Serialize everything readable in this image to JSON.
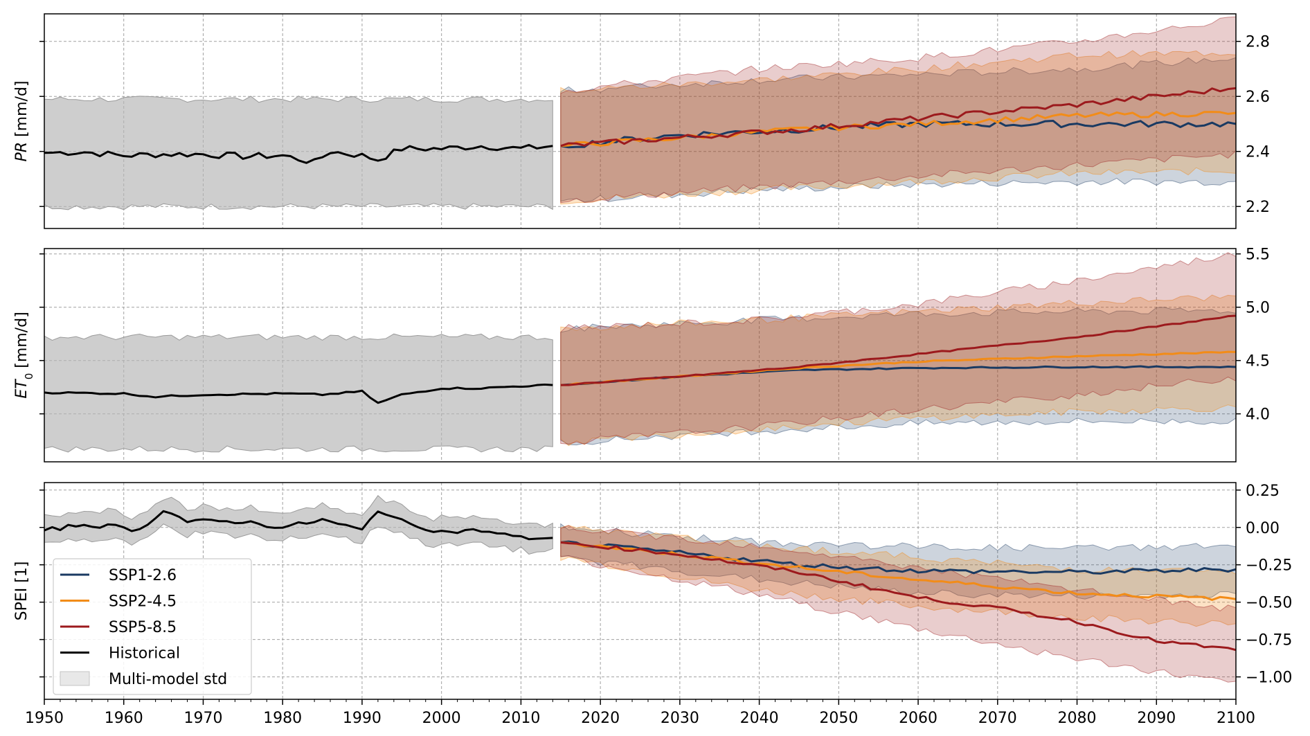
{
  "chart_data": [
    {
      "type": "line",
      "ylabel_main": "PR",
      "ylabel_unit": " [mm/d]",
      "ylabel_italic": true,
      "ylim": [
        2.12,
        2.9
      ],
      "yticks": [
        2.2,
        2.4,
        2.6,
        2.8
      ],
      "ytick_labels": [
        "2.2",
        "2.4",
        "2.6",
        "2.8"
      ],
      "grid": true,
      "historical": {
        "x_range": [
          1950,
          2014
        ],
        "anchors": [
          [
            1950,
            2.395
          ],
          [
            1955,
            2.398
          ],
          [
            1960,
            2.385
          ],
          [
            1965,
            2.39
          ],
          [
            1970,
            2.39
          ],
          [
            1975,
            2.382
          ],
          [
            1980,
            2.385
          ],
          [
            1984,
            2.36
          ],
          [
            1986,
            2.4
          ],
          [
            1990,
            2.385
          ],
          [
            1992,
            2.37
          ],
          [
            1995,
            2.41
          ],
          [
            2000,
            2.41
          ],
          [
            2005,
            2.42
          ],
          [
            2010,
            2.41
          ],
          [
            2014,
            2.42
          ]
        ],
        "noise": 0.012,
        "std_upper": 2.59,
        "std_lower": 2.2
      },
      "projections": [
        {
          "name": "SSP1-2.6",
          "anchors": [
            [
              2015,
              2.42
            ],
            [
              2030,
              2.46
            ],
            [
              2045,
              2.48
            ],
            [
              2060,
              2.5
            ],
            [
              2080,
              2.5
            ],
            [
              2100,
              2.5
            ]
          ],
          "noise": 0.012,
          "band_upper": [
            [
              2015,
              2.62
            ],
            [
              2040,
              2.66
            ],
            [
              2060,
              2.68
            ],
            [
              2080,
              2.7
            ],
            [
              2100,
              2.74
            ]
          ],
          "band_lower": [
            [
              2015,
              2.22
            ],
            [
              2040,
              2.26
            ],
            [
              2060,
              2.28
            ],
            [
              2080,
              2.29
            ],
            [
              2100,
              2.29
            ]
          ]
        },
        {
          "name": "SSP2-4.5",
          "anchors": [
            [
              2015,
              2.42
            ],
            [
              2030,
              2.45
            ],
            [
              2045,
              2.48
            ],
            [
              2060,
              2.5
            ],
            [
              2080,
              2.53
            ],
            [
              2100,
              2.54
            ]
          ],
          "noise": 0.01,
          "band_upper": [
            [
              2015,
              2.62
            ],
            [
              2040,
              2.66
            ],
            [
              2060,
              2.7
            ],
            [
              2080,
              2.75
            ],
            [
              2100,
              2.76
            ]
          ],
          "band_lower": [
            [
              2015,
              2.22
            ],
            [
              2040,
              2.26
            ],
            [
              2060,
              2.29
            ],
            [
              2080,
              2.32
            ],
            [
              2100,
              2.33
            ]
          ]
        },
        {
          "name": "SSP5-8.5",
          "anchors": [
            [
              2015,
              2.42
            ],
            [
              2030,
              2.45
            ],
            [
              2045,
              2.48
            ],
            [
              2060,
              2.52
            ],
            [
              2080,
              2.57
            ],
            [
              2090,
              2.6
            ],
            [
              2100,
              2.63
            ]
          ],
          "noise": 0.01,
          "band_upper": [
            [
              2015,
              2.62
            ],
            [
              2040,
              2.7
            ],
            [
              2060,
              2.74
            ],
            [
              2080,
              2.8
            ],
            [
              2100,
              2.88
            ]
          ],
          "band_lower": [
            [
              2015,
              2.22
            ],
            [
              2040,
              2.27
            ],
            [
              2060,
              2.31
            ],
            [
              2080,
              2.35
            ],
            [
              2100,
              2.39
            ]
          ]
        }
      ]
    },
    {
      "type": "line",
      "ylabel_main": "ET",
      "ylabel_sub": "0",
      "ylabel_unit": " [mm/d]",
      "ylabel_italic": true,
      "ylim": [
        3.55,
        5.55
      ],
      "yticks": [
        4.0,
        4.5,
        5.0,
        5.5
      ],
      "ytick_labels": [
        "4.0",
        "4.5",
        "5.0",
        "5.5"
      ],
      "grid": true,
      "historical": {
        "x_range": [
          1950,
          2014
        ],
        "anchors": [
          [
            1950,
            4.2
          ],
          [
            1960,
            4.19
          ],
          [
            1964,
            4.16
          ],
          [
            1970,
            4.18
          ],
          [
            1980,
            4.19
          ],
          [
            1985,
            4.18
          ],
          [
            1990,
            4.21
          ],
          [
            1992,
            4.1
          ],
          [
            1995,
            4.18
          ],
          [
            2000,
            4.24
          ],
          [
            2005,
            4.24
          ],
          [
            2010,
            4.26
          ],
          [
            2014,
            4.27
          ]
        ],
        "noise": 0.008,
        "std_upper": 4.72,
        "std_lower": 3.67
      },
      "projections": [
        {
          "name": "SSP1-2.6",
          "anchors": [
            [
              2015,
              4.27
            ],
            [
              2030,
              4.35
            ],
            [
              2045,
              4.41
            ],
            [
              2060,
              4.43
            ],
            [
              2080,
              4.44
            ],
            [
              2100,
              4.44
            ]
          ],
          "noise": 0.006,
          "band_upper": [
            [
              2015,
              4.8
            ],
            [
              2040,
              4.88
            ],
            [
              2060,
              4.94
            ],
            [
              2080,
              4.96
            ],
            [
              2100,
              4.97
            ]
          ],
          "band_lower": [
            [
              2015,
              3.73
            ],
            [
              2040,
              3.84
            ],
            [
              2060,
              3.91
            ],
            [
              2080,
              3.93
            ],
            [
              2100,
              3.93
            ]
          ]
        },
        {
          "name": "SSP2-4.5",
          "anchors": [
            [
              2015,
              4.27
            ],
            [
              2030,
              4.35
            ],
            [
              2045,
              4.43
            ],
            [
              2060,
              4.49
            ],
            [
              2080,
              4.54
            ],
            [
              2100,
              4.58
            ]
          ],
          "noise": 0.006,
          "band_upper": [
            [
              2015,
              4.8
            ],
            [
              2040,
              4.88
            ],
            [
              2060,
              4.96
            ],
            [
              2080,
              5.04
            ],
            [
              2100,
              5.1
            ]
          ],
          "band_lower": [
            [
              2015,
              3.73
            ],
            [
              2040,
              3.86
            ],
            [
              2060,
              3.96
            ],
            [
              2080,
              4.02
            ],
            [
              2100,
              4.06
            ]
          ]
        },
        {
          "name": "SSP5-8.5",
          "anchors": [
            [
              2015,
              4.27
            ],
            [
              2030,
              4.35
            ],
            [
              2045,
              4.44
            ],
            [
              2060,
              4.56
            ],
            [
              2080,
              4.72
            ],
            [
              2100,
              4.92
            ]
          ],
          "noise": 0.006,
          "band_upper": [
            [
              2015,
              4.8
            ],
            [
              2040,
              4.88
            ],
            [
              2060,
              5.03
            ],
            [
              2080,
              5.25
            ],
            [
              2100,
              5.5
            ]
          ],
          "band_lower": [
            [
              2015,
              3.73
            ],
            [
              2040,
              3.88
            ],
            [
              2060,
              4.04
            ],
            [
              2080,
              4.18
            ],
            [
              2100,
              4.34
            ]
          ]
        }
      ]
    },
    {
      "type": "line",
      "ylabel_main": "SPEI [1]",
      "ylabel_italic": false,
      "ylim": [
        -1.15,
        0.3
      ],
      "yticks": [
        -1.0,
        -0.75,
        -0.5,
        -0.25,
        0.0,
        0.25
      ],
      "ytick_labels": [
        "−1.00",
        "−0.75",
        "−0.50",
        "−0.25",
        "0.00",
        "0.25"
      ],
      "grid": true,
      "historical": {
        "x_range": [
          1950,
          2014
        ],
        "anchors": [
          [
            1950,
            -0.02
          ],
          [
            1955,
            0.02
          ],
          [
            1960,
            0.0
          ],
          [
            1962,
            -0.02
          ],
          [
            1965,
            0.12
          ],
          [
            1968,
            0.04
          ],
          [
            1970,
            0.04
          ],
          [
            1975,
            0.04
          ],
          [
            1980,
            0.0
          ],
          [
            1985,
            0.05
          ],
          [
            1990,
            -0.02
          ],
          [
            1992,
            0.12
          ],
          [
            1995,
            0.04
          ],
          [
            2000,
            -0.03
          ],
          [
            2005,
            -0.02
          ],
          [
            2010,
            -0.07
          ],
          [
            2014,
            -0.07
          ]
        ],
        "noise": 0.015,
        "std_upper": 0.09,
        "std_lower": 0.09
      },
      "projections": [
        {
          "name": "SSP1-2.6",
          "anchors": [
            [
              2015,
              -0.1
            ],
            [
              2030,
              -0.17
            ],
            [
              2045,
              -0.25
            ],
            [
              2060,
              -0.29
            ],
            [
              2080,
              -0.3
            ],
            [
              2100,
              -0.28
            ]
          ],
          "noise": 0.015,
          "band_upper": [
            [
              2015,
              0.0
            ],
            [
              2040,
              -0.1
            ],
            [
              2060,
              -0.13
            ],
            [
              2080,
              -0.14
            ],
            [
              2100,
              -0.12
            ]
          ],
          "band_lower": [
            [
              2015,
              -0.2
            ],
            [
              2040,
              -0.35
            ],
            [
              2060,
              -0.44
            ],
            [
              2080,
              -0.46
            ],
            [
              2100,
              -0.45
            ]
          ]
        },
        {
          "name": "SSP2-4.5",
          "anchors": [
            [
              2015,
              -0.1
            ],
            [
              2030,
              -0.18
            ],
            [
              2045,
              -0.27
            ],
            [
              2060,
              -0.35
            ],
            [
              2080,
              -0.44
            ],
            [
              2100,
              -0.48
            ]
          ],
          "noise": 0.012,
          "band_upper": [
            [
              2015,
              0.0
            ],
            [
              2040,
              -0.12
            ],
            [
              2060,
              -0.2
            ],
            [
              2080,
              -0.28
            ],
            [
              2100,
              -0.3
            ]
          ],
          "band_lower": [
            [
              2015,
              -0.2
            ],
            [
              2040,
              -0.42
            ],
            [
              2060,
              -0.53
            ],
            [
              2080,
              -0.6
            ],
            [
              2100,
              -0.65
            ]
          ]
        },
        {
          "name": "SSP5-8.5",
          "anchors": [
            [
              2015,
              -0.1
            ],
            [
              2030,
              -0.18
            ],
            [
              2045,
              -0.3
            ],
            [
              2060,
              -0.47
            ],
            [
              2070,
              -0.54
            ],
            [
              2080,
              -0.63
            ],
            [
              2090,
              -0.76
            ],
            [
              2100,
              -0.82
            ]
          ],
          "noise": 0.012,
          "band_upper": [
            [
              2015,
              0.0
            ],
            [
              2040,
              -0.12
            ],
            [
              2060,
              -0.27
            ],
            [
              2080,
              -0.42
            ],
            [
              2100,
              -0.55
            ]
          ],
          "band_lower": [
            [
              2015,
              -0.2
            ],
            [
              2040,
              -0.45
            ],
            [
              2060,
              -0.68
            ],
            [
              2080,
              -0.88
            ],
            [
              2100,
              -1.05
            ]
          ]
        }
      ]
    }
  ],
  "x_axis": {
    "xlim": [
      1950,
      2100
    ],
    "ticks": [
      1950,
      1960,
      1970,
      1980,
      1990,
      2000,
      2010,
      2020,
      2030,
      2040,
      2050,
      2060,
      2070,
      2080,
      2090,
      2100
    ],
    "tick_labels": [
      "1950",
      "1960",
      "1970",
      "1980",
      "1990",
      "2000",
      "2010",
      "2020",
      "2030",
      "2040",
      "2050",
      "2060",
      "2070",
      "2080",
      "2090",
      "2100"
    ]
  },
  "colors": {
    "SSP1-2.6": "#1a3a62",
    "SSP2-4.5": "#f28c18",
    "SSP5-8.5": "#9c1a1d",
    "Historical": "#000000",
    "std_fill": "#b4b4b4",
    "grid": "#a0a0a0"
  },
  "legend": {
    "placement": "lower-left",
    "entries": [
      {
        "label": "SSP1-2.6",
        "kind": "line",
        "color": "#1a3a62"
      },
      {
        "label": "SSP2-4.5",
        "kind": "line",
        "color": "#f28c18"
      },
      {
        "label": "SSP5-8.5",
        "kind": "line",
        "color": "#9c1a1d"
      },
      {
        "label": "Historical",
        "kind": "line",
        "color": "#000000"
      },
      {
        "label": "Multi-model std",
        "kind": "patch",
        "color": "#e8e8e8"
      }
    ]
  }
}
